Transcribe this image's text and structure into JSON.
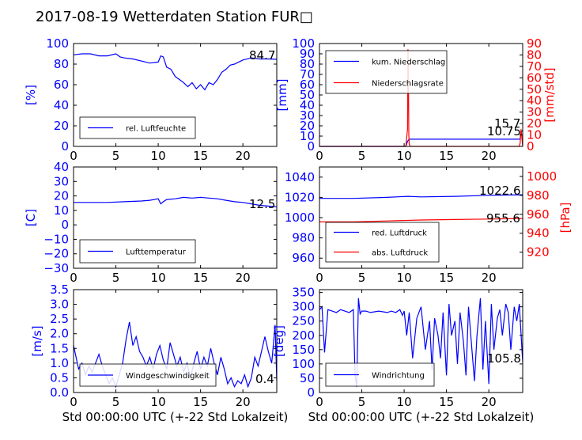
{
  "title": "2017-08-19 Wetterdaten Station FUR□",
  "chart_data": [
    {
      "type": "line",
      "xlim": [
        0,
        24
      ],
      "ylim": [
        0,
        100
      ],
      "yticks": [
        "0",
        "20",
        "40",
        "60",
        "80",
        "100"
      ],
      "ylabel": "[%]",
      "series": [
        {
          "name": "rel. Luftfeuchte",
          "color": "#0000ff",
          "x": [
            0,
            1,
            2,
            3,
            4,
            5,
            5.5,
            6,
            7,
            8,
            9,
            10,
            10.3,
            10.6,
            11,
            11.5,
            12,
            12.5,
            13,
            13.5,
            14,
            14.5,
            15,
            15.5,
            16,
            16.5,
            17,
            17.5,
            18,
            18.5,
            19,
            20,
            21,
            22,
            23,
            24
          ],
          "y": [
            89,
            90,
            90,
            88,
            88,
            90,
            87,
            86,
            85,
            83,
            81,
            82,
            88,
            87,
            77,
            75,
            68,
            65,
            62,
            58,
            62,
            56,
            60,
            55,
            62,
            60,
            65,
            72,
            75,
            79,
            80,
            84,
            86,
            85,
            85,
            84.7
          ]
        }
      ],
      "annotations": [
        "84.7"
      ]
    },
    {
      "type": "line",
      "xlim": [
        0,
        24
      ],
      "ylim": [
        0,
        100
      ],
      "yticks": [
        "0",
        "10",
        "20",
        "30",
        "40",
        "50",
        "60",
        "70",
        "80",
        "90",
        "100"
      ],
      "ylabel": "[mm]",
      "y2lim": [
        0,
        90
      ],
      "y2ticks": [
        "0",
        "10",
        "20",
        "30",
        "40",
        "50",
        "60",
        "70",
        "80",
        "90"
      ],
      "y2label": "[mm/std]",
      "series": [
        {
          "name": "kum. Niederschlag",
          "color": "#0000ff",
          "axis": "left",
          "x": [
            0,
            10.2,
            10.4,
            10.6,
            11,
            23.6,
            23.7,
            23.8,
            24
          ],
          "y": [
            0,
            0,
            5,
            7,
            7,
            7,
            7.5,
            14,
            15.7
          ]
        },
        {
          "name": "Niederschlagsrate",
          "color": "#ff0000",
          "axis": "right",
          "x": [
            0,
            10.2,
            10.3,
            10.4,
            10.45,
            10.5,
            10.55,
            10.6,
            10.7,
            23.6,
            23.7,
            23.8,
            23.9,
            24
          ],
          "y": [
            0,
            0,
            8,
            15,
            85,
            70,
            10,
            2,
            0,
            0,
            3,
            15,
            8,
            0
          ]
        }
      ],
      "annotations": [
        "15.7",
        "10.75"
      ]
    },
    {
      "type": "line",
      "xlim": [
        0,
        24
      ],
      "ylim": [
        -30,
        40
      ],
      "yticks": [
        "−30",
        "−20",
        "−10",
        "0",
        "10",
        "20",
        "30",
        "40"
      ],
      "ylabel": "[C]",
      "series": [
        {
          "name": "Lufttemperatur",
          "color": "#0000ff",
          "x": [
            0,
            2,
            4,
            6,
            8,
            9,
            10,
            10.3,
            10.6,
            11,
            12,
            13,
            14,
            15,
            16,
            17,
            18,
            19,
            20,
            21,
            22,
            23,
            24
          ],
          "y": [
            15.5,
            15.5,
            15.5,
            16,
            16.5,
            17,
            18,
            14.5,
            16,
            17.5,
            18,
            19,
            18.5,
            19,
            18.5,
            18,
            17,
            16,
            15.5,
            14.5,
            13.5,
            13,
            12.5
          ]
        }
      ],
      "annotations": [
        "12.5"
      ]
    },
    {
      "type": "line",
      "xlim": [
        0,
        24
      ],
      "ylim": [
        950,
        1050
      ],
      "yticks": [
        "960",
        "980",
        "1000",
        "1020",
        "1040"
      ],
      "y2lim": [
        903,
        1010
      ],
      "y2ticks": [
        "920",
        "940",
        "960",
        "980",
        "1000"
      ],
      "y2label": "[hPa]",
      "series": [
        {
          "name": "red. Luftdruck",
          "color": "#0000ff",
          "axis": "left",
          "x": [
            0,
            4,
            8,
            10.5,
            12,
            16,
            20,
            24
          ],
          "y": [
            1019,
            1019,
            1020,
            1021,
            1020.5,
            1021,
            1022,
            1022.6
          ]
        },
        {
          "name": "abs. Luftdruck",
          "color": "#ff0000",
          "axis": "right",
          "x": [
            0,
            4,
            8,
            12,
            16,
            20,
            24
          ],
          "y": [
            952,
            952,
            953,
            954,
            954.5,
            955,
            955.6
          ]
        }
      ],
      "annotations": [
        "1022.6",
        "955.6"
      ]
    },
    {
      "type": "line",
      "xlim": [
        0,
        24
      ],
      "ylim": [
        0,
        3.5
      ],
      "yticks": [
        "0.0",
        "0.5",
        "1.0",
        "1.5",
        "2.0",
        "2.5",
        "3.0",
        "3.5"
      ],
      "ylabel": "[m/s]",
      "xticks": [
        "0",
        "5",
        "10",
        "15",
        "20"
      ],
      "xlabel": "Std 00:00:00 UTC (+-22 Std Lokalzeit)",
      "series": [
        {
          "name": "Windgeschwindigkeit",
          "color": "#0000ff",
          "x": [
            0,
            0.3,
            0.6,
            1,
            1.4,
            1.8,
            2.2,
            2.6,
            3,
            3.4,
            3.8,
            4.2,
            4.6,
            5,
            5.4,
            5.8,
            6.2,
            6.6,
            7,
            7.4,
            7.8,
            8.2,
            8.6,
            9,
            9.4,
            9.8,
            10.2,
            10.6,
            11,
            11.4,
            11.8,
            12.2,
            12.6,
            13,
            13.4,
            13.8,
            14.2,
            14.6,
            15,
            15.4,
            15.8,
            16.2,
            16.6,
            17,
            17.4,
            17.8,
            18.2,
            18.6,
            19,
            19.4,
            19.8,
            20.2,
            20.6,
            21,
            21.4,
            21.8,
            22.2,
            22.6,
            23,
            23.4,
            23.8,
            24
          ],
          "y": [
            1.6,
            1.2,
            0.8,
            1.0,
            0.6,
            0.9,
            0.7,
            1.0,
            1.3,
            0.9,
            0.6,
            0.3,
            0.5,
            0.2,
            0.6,
            1.0,
            1.8,
            2.4,
            1.6,
            1.9,
            1.4,
            1.2,
            0.9,
            1.2,
            0.8,
            1.3,
            1.6,
            1.1,
            0.8,
            1.7,
            1.3,
            0.9,
            1.2,
            0.7,
            1.0,
            0.5,
            1.0,
            1.4,
            0.8,
            1.2,
            0.9,
            1.5,
            1.0,
            0.6,
            1.2,
            0.8,
            0.3,
            0.5,
            0.2,
            0.4,
            0.3,
            0.6,
            0.2,
            0.5,
            1.2,
            0.9,
            1.4,
            1.9,
            1.4,
            1.0,
            2.3,
            0.4
          ]
        }
      ],
      "annotations": [
        "0.4"
      ]
    },
    {
      "type": "line",
      "xlim": [
        0,
        24
      ],
      "ylim": [
        0,
        360
      ],
      "yticks": [
        "0",
        "50",
        "100",
        "150",
        "200",
        "250",
        "300",
        "350"
      ],
      "ylabel": "[deg]",
      "xticks": [
        "0",
        "5",
        "10",
        "15",
        "20"
      ],
      "xlabel": "Std 00:00:00 UTC (+-22 Std Lokalzeit)",
      "series": [
        {
          "name": "Windrichtung",
          "color": "#0000ff",
          "x": [
            0,
            0.3,
            0.6,
            1,
            1.5,
            2,
            2.5,
            3,
            3.5,
            4,
            4.2,
            4.4,
            4.6,
            4.8,
            5,
            5.5,
            6,
            7,
            8,
            8.5,
            9,
            9.5,
            9.8,
            10,
            10.3,
            10.6,
            11,
            11.5,
            12,
            12.5,
            13,
            13.3,
            13.6,
            14,
            14.3,
            14.6,
            15,
            15.3,
            15.6,
            16,
            16.3,
            16.6,
            17,
            17.3,
            17.6,
            18,
            18.3,
            18.6,
            19,
            19.3,
            19.6,
            20,
            20.3,
            20.6,
            21,
            21.3,
            21.6,
            22,
            22.3,
            22.6,
            23,
            23.3,
            23.6,
            24
          ],
          "y": [
            290,
            300,
            140,
            290,
            285,
            280,
            290,
            285,
            280,
            290,
            60,
            20,
            330,
            275,
            285,
            285,
            280,
            285,
            280,
            285,
            280,
            290,
            270,
            285,
            200,
            280,
            120,
            260,
            300,
            150,
            250,
            80,
            260,
            200,
            120,
            280,
            60,
            310,
            200,
            250,
            100,
            280,
            180,
            60,
            300,
            150,
            40,
            200,
            330,
            80,
            250,
            30,
            310,
            150,
            260,
            290,
            200,
            310,
            280,
            150,
            300,
            250,
            310,
            106
          ]
        }
      ],
      "annotations": [
        "105.8"
      ]
    }
  ]
}
